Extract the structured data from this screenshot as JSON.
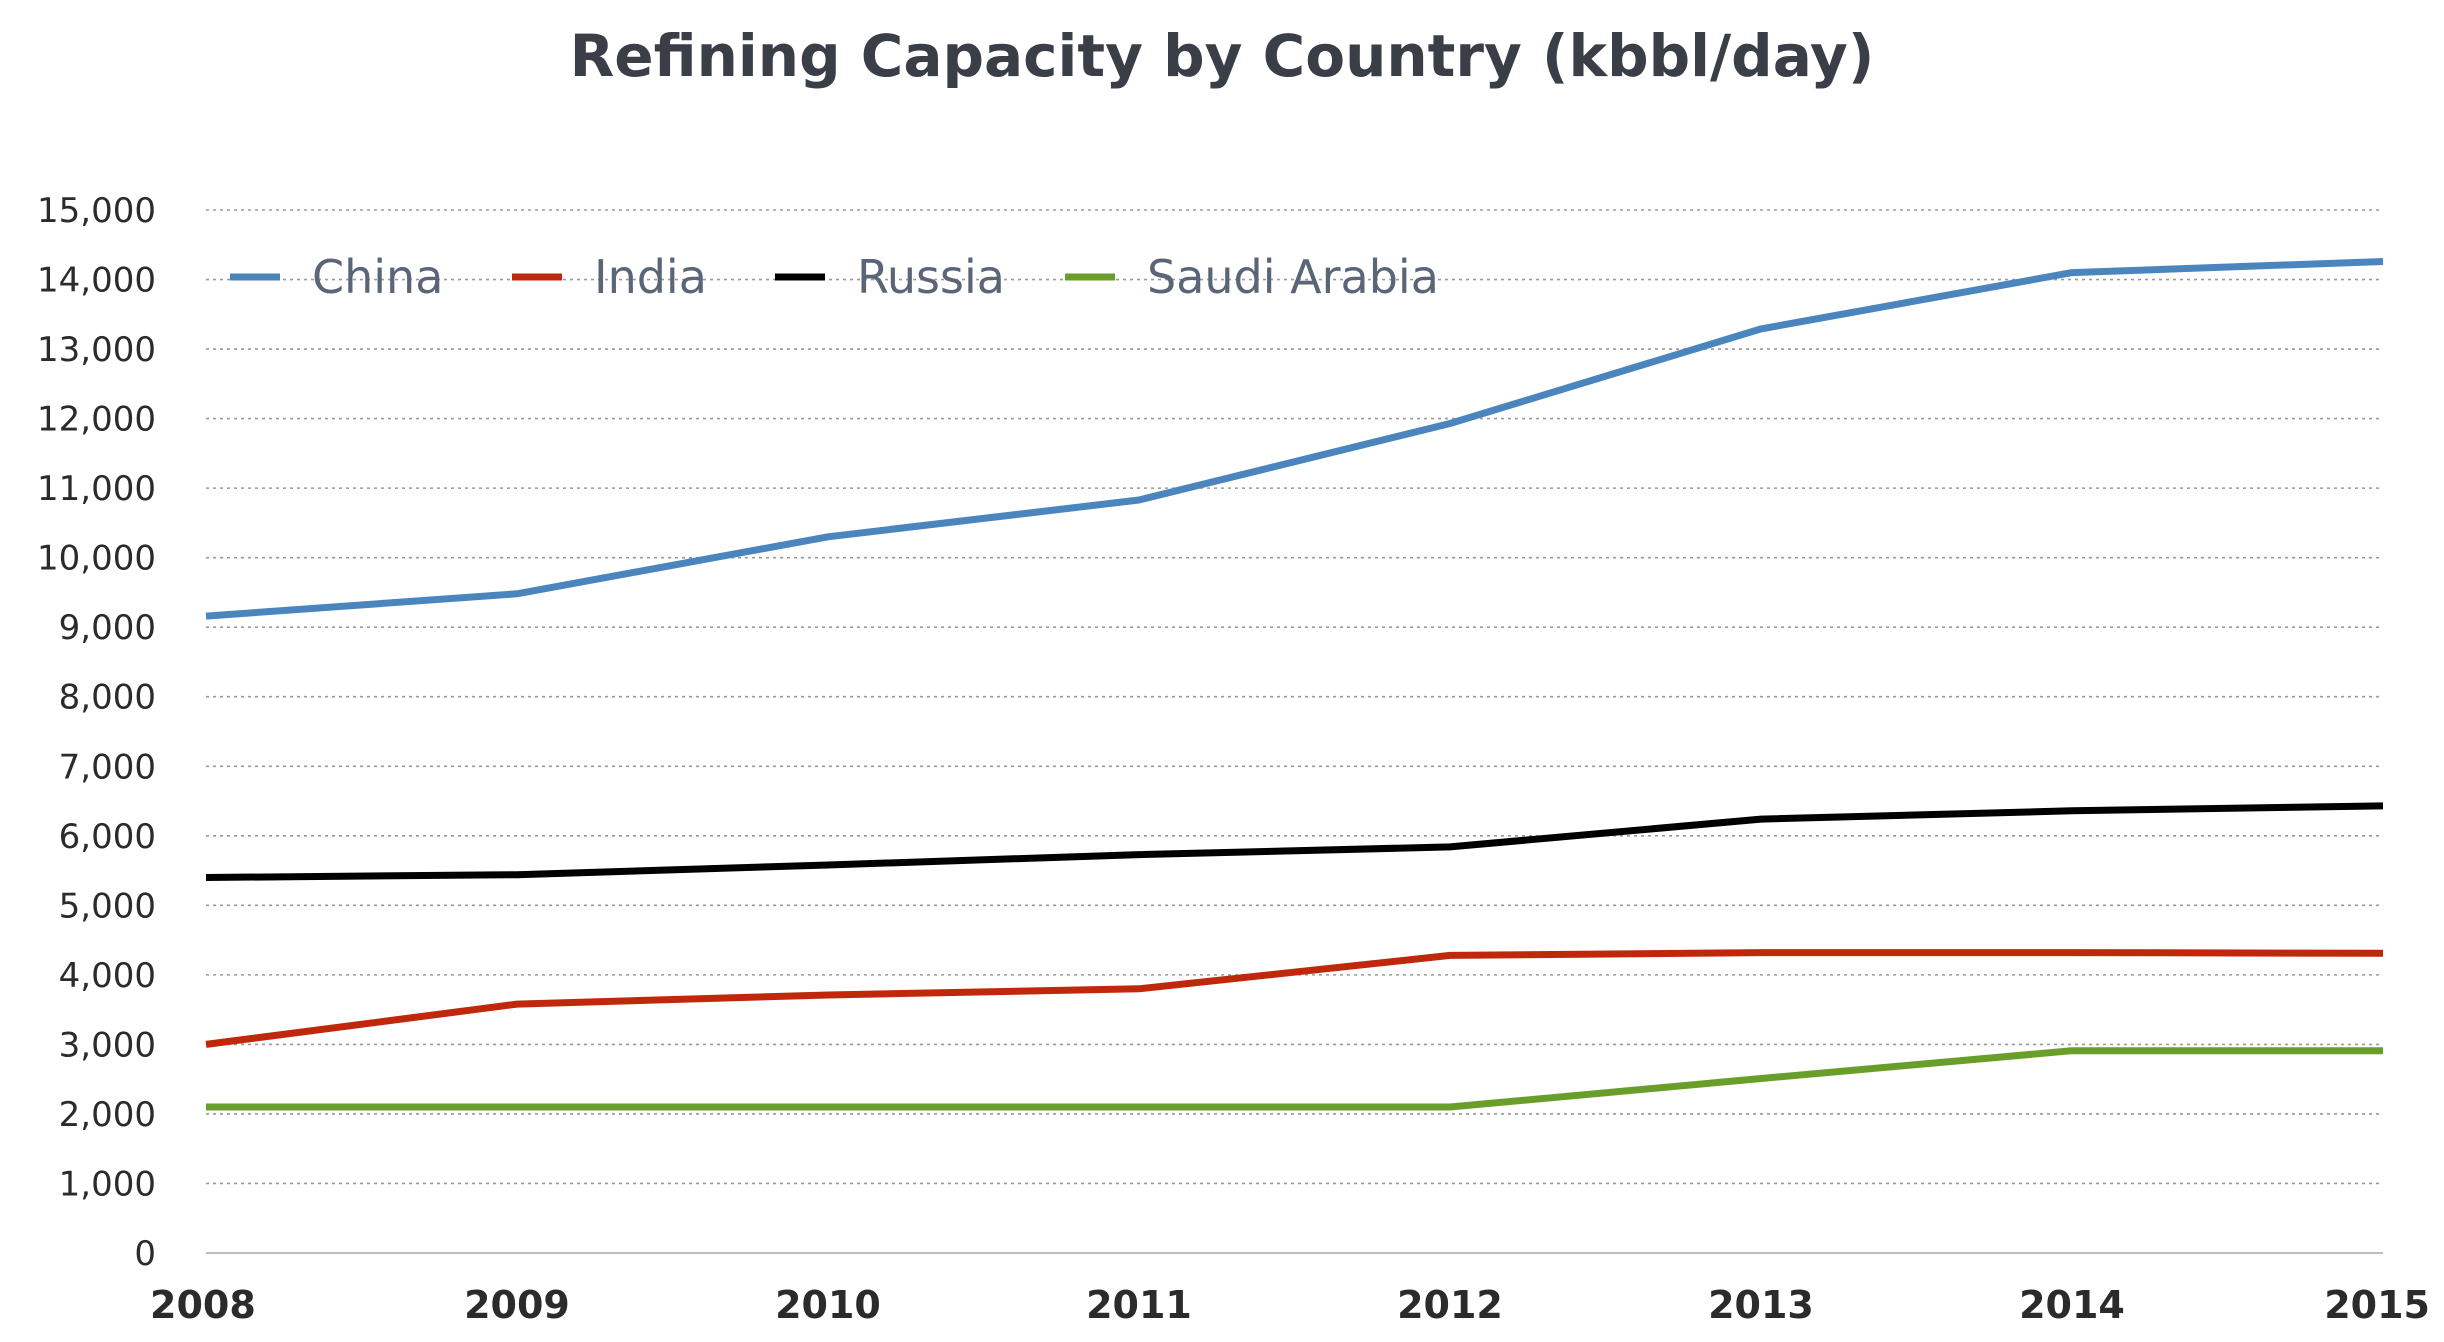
{
  "chart_data": {
    "type": "line",
    "title": "Refining Capacity by Country (kbbl/day)",
    "xlabel": "",
    "ylabel": "",
    "x": [
      "2008",
      "2009",
      "2010",
      "2011",
      "2012",
      "2013",
      "2014",
      "2015"
    ],
    "ylim": [
      0,
      15000
    ],
    "yticks": [
      "0",
      "1,000",
      "2,000",
      "3,000",
      "4,000",
      "5,000",
      "6,000",
      "7,000",
      "8,000",
      "9,000",
      "10,000",
      "11,000",
      "12,000",
      "13,000",
      "14,000",
      "15,000"
    ],
    "grid": true,
    "legend_position": "top-left",
    "series": [
      {
        "name": "China",
        "color": "#4a86bd",
        "values": [
          9160,
          9480,
          10300,
          10830,
          11930,
          13290,
          14100,
          14260
        ]
      },
      {
        "name": "India",
        "color": "#c0280c",
        "values": [
          3000,
          3580,
          3710,
          3800,
          4280,
          4320,
          4320,
          4310
        ]
      },
      {
        "name": "Russia",
        "color": "#000000",
        "values": [
          5400,
          5440,
          5580,
          5730,
          5840,
          6240,
          6360,
          6430
        ]
      },
      {
        "name": "Saudi Arabia",
        "color": "#6a9e2a",
        "values": [
          2100,
          2100,
          2100,
          2100,
          2100,
          2510,
          2910,
          2910
        ]
      }
    ]
  }
}
